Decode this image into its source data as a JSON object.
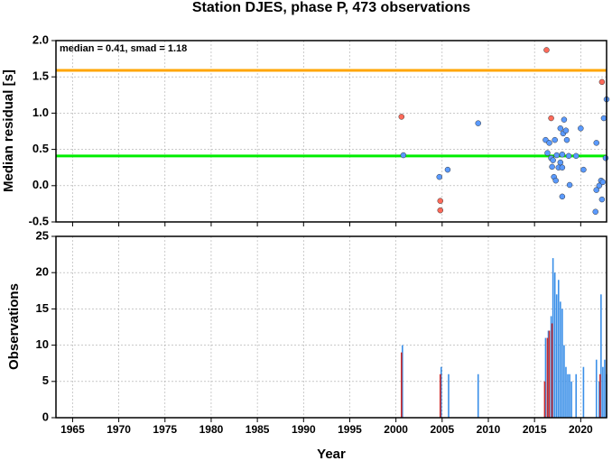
{
  "chart_data": [
    {
      "type": "scatter",
      "title": "Station DJES, phase P, 473 observations",
      "ylabel": "Median residual [s]",
      "annotation": "median = 0.41, smad = 1.18",
      "hlines": [
        {
          "value": 1.59,
          "color": "#ffa500"
        },
        {
          "value": 0.41,
          "color": "#00ee00"
        }
      ],
      "ylim": [
        -0.5,
        2.0
      ],
      "yticks": [
        {
          "value": 2.0,
          "label": "2.0"
        },
        1.5,
        {
          "value": 1.0,
          "label": "1.0"
        },
        0.5,
        {
          "value": 0.0,
          "label": "0.0"
        },
        -0.5
      ],
      "grid": true,
      "series": [
        {
          "color": "#ff6a5a",
          "x": [
            2000.6,
            2004.8,
            2004.8,
            2016.3,
            2016.8,
            2022.3
          ],
          "values": [
            0.95,
            -0.21,
            -0.34,
            1.87,
            0.93,
            1.43
          ]
        },
        {
          "color": "#5a9aff",
          "x": [
            2000.8,
            2004.7,
            2005.6,
            2008.9,
            2016.2,
            2016.6,
            2016.4,
            2016.8,
            2016.9,
            2017.0,
            2017.2,
            2017.1,
            2017.3,
            2017.4,
            2017.6,
            2017.8,
            2018.0,
            2017.8,
            2018.0,
            2018.1,
            2018.2,
            2018.0,
            2018.4,
            2018.5,
            2018.7,
            2018.8,
            2019.5,
            2020.0,
            2020.3,
            2021.7,
            2021.7,
            2021.6,
            2022.0,
            2022.2,
            2022.4,
            2022.3,
            2022.5,
            2022.8,
            2022.7
          ],
          "values": [
            0.42,
            0.12,
            0.22,
            0.86,
            0.63,
            0.59,
            0.45,
            0.38,
            0.26,
            0.35,
            0.63,
            0.12,
            0.07,
            0.42,
            0.25,
            0.32,
            0.25,
            0.79,
            0.43,
            0.72,
            0.91,
            -0.15,
            0.76,
            0.63,
            0.41,
            0.01,
            0.41,
            0.79,
            0.22,
            0.59,
            -0.06,
            -0.36,
            0.0,
            0.07,
            0.05,
            -0.19,
            0.93,
            1.19,
            0.38
          ]
        }
      ]
    },
    {
      "type": "bar",
      "ylabel": "Observations",
      "xlabel": "Year",
      "xlim": [
        1963.2,
        2022.8
      ],
      "xticks": [
        1965,
        1970,
        1975,
        1980,
        1985,
        1990,
        1995,
        2000,
        2005,
        2010,
        2015,
        2020
      ],
      "ylim": [
        0,
        25
      ],
      "yticks": [
        0,
        5,
        10,
        15,
        20,
        25
      ],
      "grid": true,
      "series": [
        {
          "color": "#3a8fe8",
          "x": [
            2000.7,
            2004.9,
            2005.7,
            2008.9,
            2016.2,
            2016.5,
            2016.8,
            2017.0,
            2017.2,
            2017.4,
            2017.6,
            2017.8,
            2018.0,
            2018.2,
            2018.4,
            2018.6,
            2018.8,
            2019.0,
            2019.5,
            2020.3,
            2021.7,
            2022.0,
            2022.2,
            2022.4,
            2022.6,
            2022.8
          ],
          "values": [
            10,
            7,
            6,
            6,
            11,
            12,
            14,
            22,
            20,
            17,
            19,
            16,
            15,
            10,
            7,
            6,
            6,
            5,
            6,
            7,
            8,
            5,
            17,
            7,
            8,
            6
          ]
        },
        {
          "color": "#cc2a2a",
          "x": [
            2000.6,
            2004.8,
            2016.1,
            2016.4,
            2016.6,
            2016.9,
            2022.1
          ],
          "values": [
            9,
            6,
            5,
            11,
            12,
            13,
            6
          ]
        }
      ]
    }
  ]
}
